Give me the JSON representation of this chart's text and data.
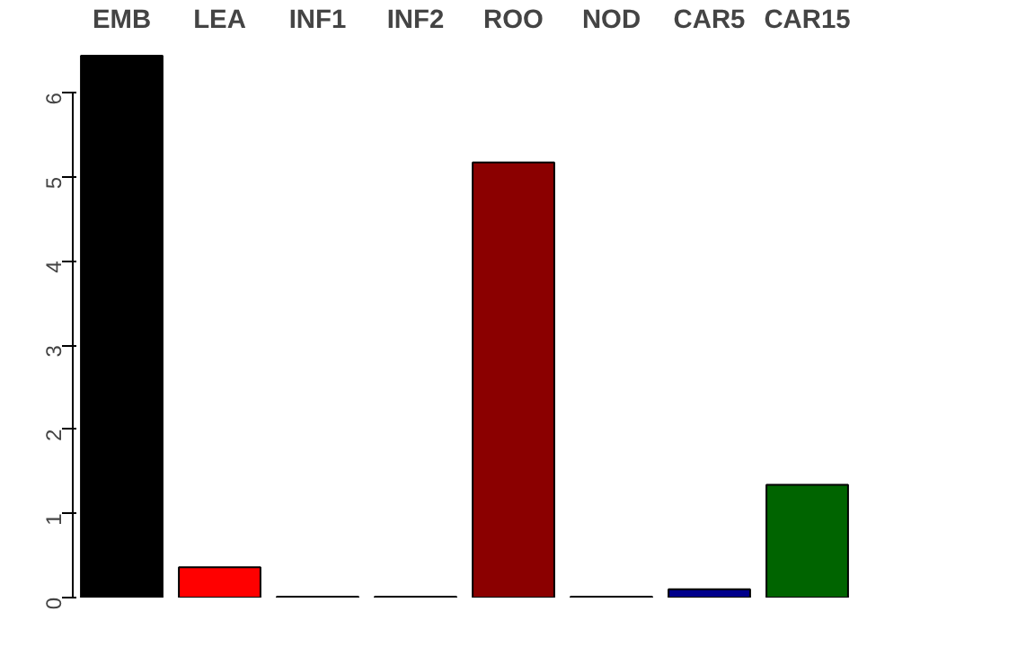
{
  "chart_data": {
    "type": "bar",
    "categories": [
      "EMB",
      "LEA",
      "INF1",
      "INF2",
      "ROO",
      "NOD",
      "CAR5",
      "CAR15"
    ],
    "values": [
      6.44,
      0.36,
      0.01,
      0.01,
      5.17,
      0.01,
      0.1,
      1.34
    ],
    "colors": [
      "#000000",
      "#ff0000",
      "#2f4f4f",
      "#191970",
      "#8b0000",
      "#4b0082",
      "#00008b",
      "#006400"
    ],
    "ylim": [
      0,
      6.45
    ],
    "yticks": [
      0,
      1,
      2,
      3,
      4,
      5,
      6
    ],
    "grid": false
  }
}
